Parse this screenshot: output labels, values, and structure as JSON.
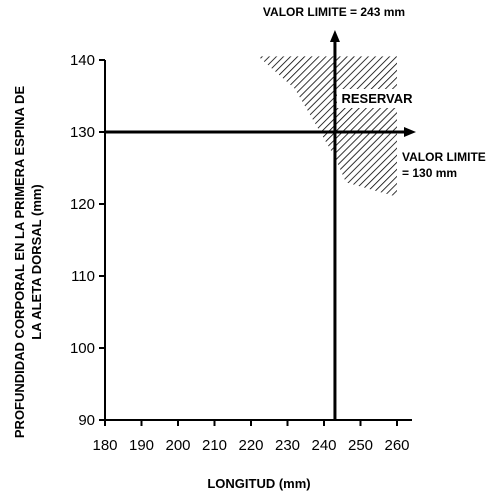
{
  "chart_data": {
    "type": "line",
    "title": "",
    "xlabel": "LONGITUD (mm)",
    "ylabel_lines": [
      "PROFUNDIDAD CORPORAL EN LA PRIMERA ESPINA DE",
      "LA ALETA DORSAL (mm)"
    ],
    "xlim": [
      180,
      265
    ],
    "ylim": [
      90,
      140
    ],
    "x_ticks": [
      180,
      190,
      200,
      210,
      220,
      230,
      240,
      250,
      260
    ],
    "y_ticks": [
      90,
      100,
      110,
      120,
      130,
      140
    ],
    "limit_lines": [
      {
        "orientation": "vertical",
        "value": 243,
        "label": "VALOR LIMITE = 243 mm"
      },
      {
        "orientation": "horizontal",
        "value": 130,
        "label_lines": [
          "VALOR LIMITE",
          "= 130 mm"
        ]
      }
    ],
    "hatched_region": {
      "label": "RESERVAR",
      "polygon": [
        [
          222,
          140.5
        ],
        [
          260,
          140.5
        ],
        [
          260,
          121
        ],
        [
          246,
          123
        ],
        [
          243,
          126.5
        ],
        [
          232,
          136
        ]
      ]
    },
    "grid": false,
    "legend": "none"
  }
}
